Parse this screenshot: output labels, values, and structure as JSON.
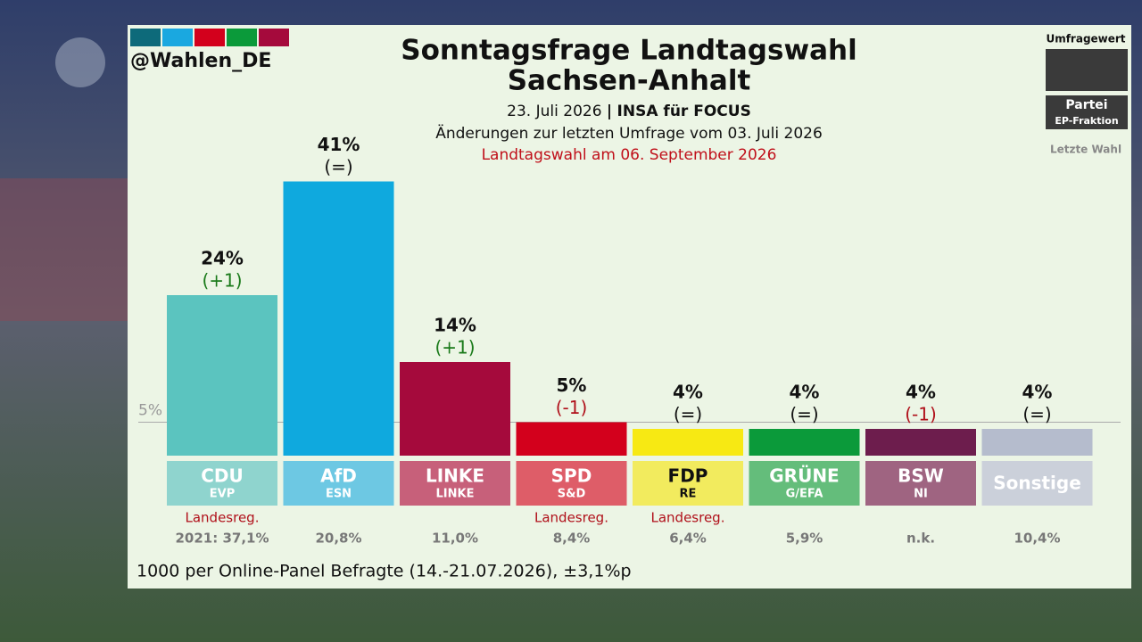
{
  "chart_data": {
    "type": "bar",
    "title": [
      "Sonntagsfrage Landtagswahl",
      "Sachsen-Anhalt"
    ],
    "subtitle": {
      "date": "23. Juli 2026",
      "separator": "|",
      "institute": "INSA für FOCUS"
    },
    "changes_note": "Änderungen zur letzten Umfrage vom 03. Juli 2026",
    "election_note": "Landtagswahl am 06. September 2026",
    "source": "@Wahlen_DE",
    "footer": "1000 per Online-Panel Befragte (14.-21.07.2026), ±3,1%p",
    "legend": {
      "value": "Umfragewert",
      "party": "Partei",
      "group": "EP-Fraktion",
      "last": "Letzte Wahl"
    },
    "categories": [
      "CDU",
      "AfD",
      "LINKE",
      "SPD",
      "FDP",
      "GRÜNE",
      "BSW",
      "Sonstige"
    ],
    "groups": [
      "EVP",
      "ESN",
      "LINKE",
      "S&D",
      "RE",
      "G/EFA",
      "NI",
      null
    ],
    "values": [
      24,
      41,
      14,
      5,
      4,
      4,
      4,
      4
    ],
    "value_labels": [
      "24%",
      "41%",
      "14%",
      "5%",
      "4%",
      "4%",
      "4%",
      "4%"
    ],
    "change_labels": [
      "(+1)",
      "(=)",
      "(+1)",
      "(-1)",
      "(=)",
      "(=)",
      "(-1)",
      "(=)"
    ],
    "change_colors": [
      "#1a7a1a",
      "#111111",
      "#1a7a1a",
      "#b0101a",
      "#111111",
      "#111111",
      "#b0101a",
      "#111111"
    ],
    "colors": [
      "#5bc4bf",
      "#0fa9de",
      "#a50a3c",
      "#d3001c",
      "#f7e913",
      "#0b9a3a",
      "#6d1d4d",
      "#b5bccd"
    ],
    "label_colors": [
      "#8fd4ce",
      "#6dc8e3",
      "#c7607a",
      "#de5d68",
      "#f2eb5e",
      "#64bd7b",
      "#9f6481",
      "#cbd0da"
    ],
    "label_text_colors": [
      "#ffffff",
      "#ffffff",
      "#ffffff",
      "#ffffff",
      "#111111",
      "#ffffff",
      "#ffffff",
      "#ffffff"
    ],
    "government": [
      "Landesreg.",
      null,
      null,
      "Landesreg.",
      "Landesreg.",
      null,
      null,
      null
    ],
    "last_election": [
      "2021: 37,1%",
      "20,8%",
      "11,0%",
      "8,4%",
      "6,4%",
      "5,9%",
      "n.k.",
      "10,4%"
    ],
    "threshold": {
      "value": 5,
      "label": "5%"
    },
    "ylim": [
      0,
      50
    ]
  }
}
